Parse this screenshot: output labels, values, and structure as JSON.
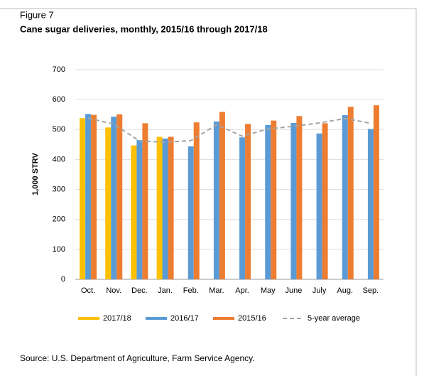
{
  "chart_data": {
    "type": "bar",
    "figure_label": "Figure 7",
    "title": "Cane sugar deliveries, monthly, 2015/16 through 2017/18",
    "y_label": "1,000 STRV",
    "source": "Source: U.S. Department of Agriculture, Farm Service Agency.",
    "categories": [
      "Oct.",
      "Nov.",
      "Dec.",
      "Jan.",
      "Feb.",
      "Mar.",
      "Apr.",
      "May",
      "June",
      "July",
      "Aug.",
      "Sep."
    ],
    "series": [
      {
        "name": "2017/18",
        "color": "#FFC000",
        "values": [
          538,
          507,
          447,
          476,
          null,
          null,
          null,
          null,
          null,
          null,
          null,
          null
        ]
      },
      {
        "name": "2016/17",
        "color": "#5B9BD5",
        "values": [
          552,
          543,
          465,
          470,
          444,
          527,
          474,
          515,
          522,
          487,
          548,
          502
        ]
      },
      {
        "name": "2015/16",
        "color": "#ED7D31",
        "values": [
          549,
          551,
          521,
          476,
          524,
          559,
          519,
          530,
          545,
          521,
          576,
          581
        ]
      },
      {
        "name": "5-year average",
        "type": "line",
        "color": "#A5A5A5",
        "values": [
          538,
          518,
          462,
          458,
          463,
          516,
          478,
          502,
          511,
          522,
          537,
          521
        ]
      }
    ],
    "ylim": [
      0,
      700
    ],
    "yticks": [
      0,
      100,
      200,
      300,
      400,
      500,
      600,
      700
    ],
    "grid": true
  }
}
